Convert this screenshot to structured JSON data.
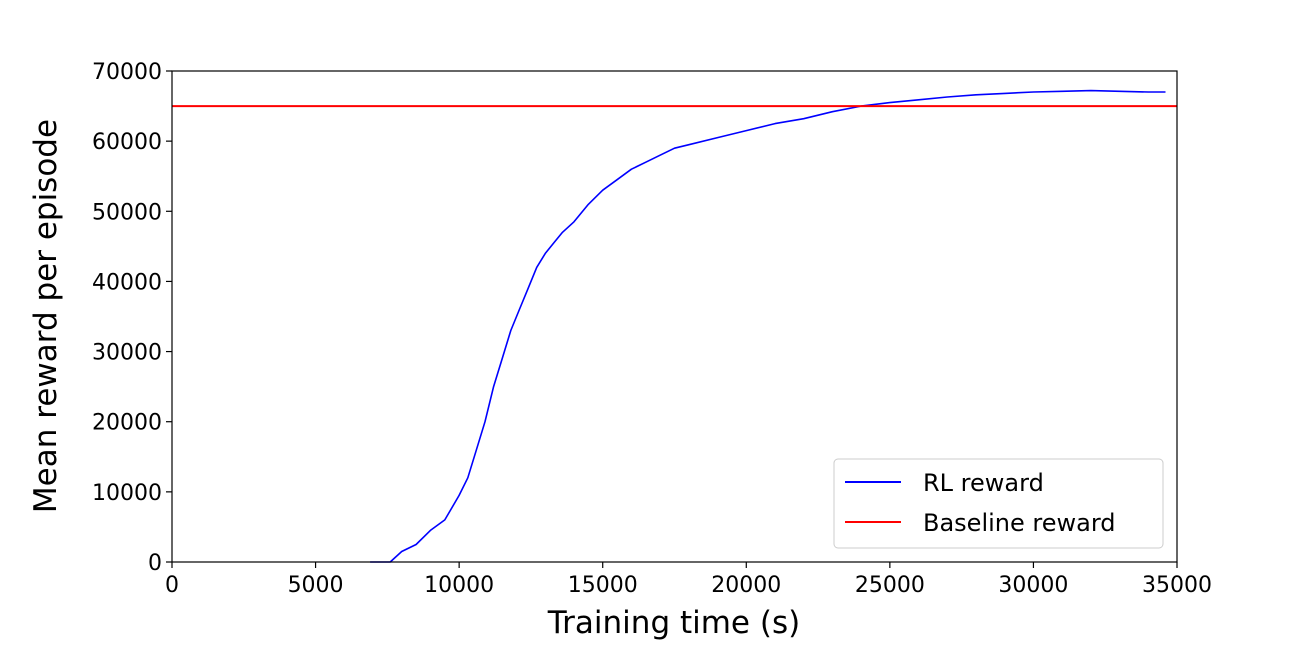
{
  "chart_data": {
    "type": "line",
    "title": "",
    "xlabel": "Training time (s)",
    "ylabel": "Mean reward per episode",
    "xlim": [
      0,
      35000
    ],
    "ylim": [
      0,
      70000
    ],
    "xticks": [
      0,
      5000,
      10000,
      15000,
      20000,
      25000,
      30000,
      35000
    ],
    "yticks": [
      0,
      10000,
      20000,
      30000,
      40000,
      50000,
      60000,
      70000
    ],
    "xtick_labels": [
      "0",
      "5000",
      "10000",
      "15000",
      "20000",
      "25000",
      "30000",
      "35000"
    ],
    "ytick_labels": [
      "0",
      "10000",
      "20000",
      "30000",
      "40000",
      "50000",
      "60000",
      "70000"
    ],
    "grid": false,
    "legend_position": "lower-right",
    "series": [
      {
        "name": "RL reward",
        "color": "#0000ff",
        "kind": "line",
        "x": [
          6900,
          7200,
          7600,
          8000,
          8500,
          9000,
          9500,
          10000,
          10300,
          10600,
          10900,
          11200,
          11500,
          11800,
          12100,
          12400,
          12700,
          13000,
          13300,
          13600,
          14000,
          14500,
          15000,
          15500,
          16000,
          16500,
          17000,
          17500,
          18000,
          19000,
          20000,
          21000,
          22000,
          23000,
          24000,
          25000,
          26000,
          27000,
          28000,
          29000,
          30000,
          31000,
          32000,
          33000,
          34000,
          34600
        ],
        "y": [
          0,
          -300,
          0,
          1500,
          2500,
          4500,
          6000,
          9500,
          12000,
          16000,
          20000,
          25000,
          29000,
          33000,
          36000,
          39000,
          42000,
          44000,
          45500,
          47000,
          48500,
          51000,
          53000,
          54500,
          56000,
          57000,
          58000,
          59000,
          59500,
          60500,
          61500,
          62500,
          63200,
          64200,
          65000,
          65500,
          65900,
          66300,
          66600,
          66800,
          67000,
          67100,
          67200,
          67100,
          67000,
          67000
        ]
      },
      {
        "name": "Baseline reward",
        "color": "#ff0000",
        "kind": "hline",
        "y": 65000
      }
    ]
  }
}
